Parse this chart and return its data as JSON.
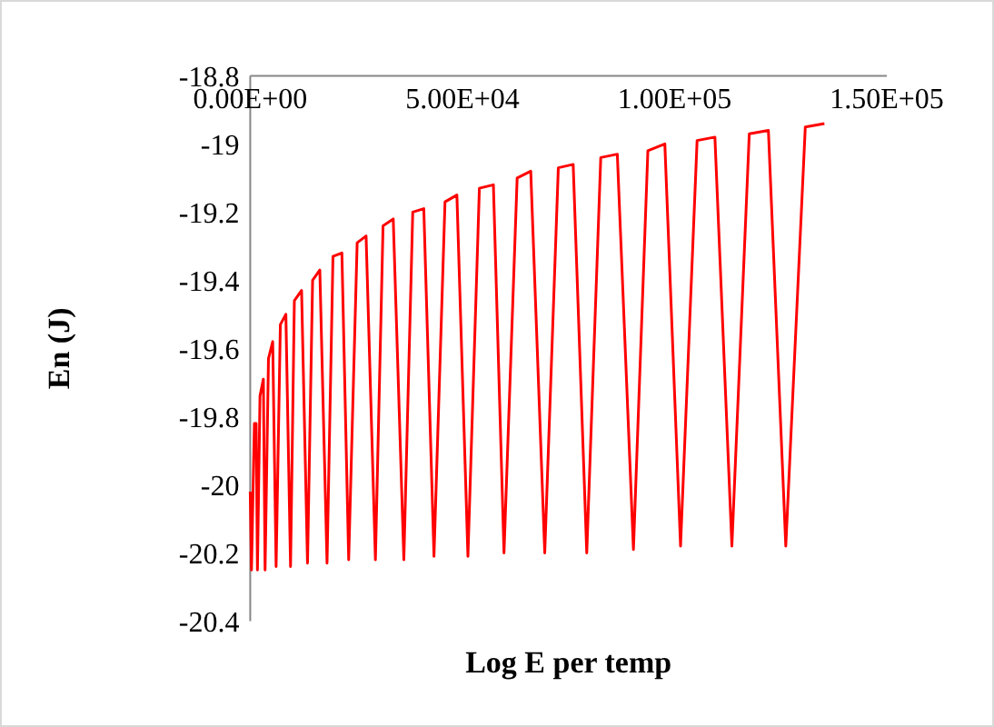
{
  "chart_data": {
    "type": "line",
    "xlabel": "Log E per temp",
    "ylabel": "En (J)",
    "xlim": [
      0,
      150000
    ],
    "xticks": [
      {
        "value": 0,
        "label": "0.00E+00"
      },
      {
        "value": 50000,
        "label": "5.00E+04"
      },
      {
        "value": 100000,
        "label": "1.00E+05"
      },
      {
        "value": 150000,
        "label": "1.50E+05"
      }
    ],
    "ylim": [
      -20.4,
      -18.8
    ],
    "yticks": [
      -20.4,
      -20.2,
      -20,
      -19.8,
      -19.6,
      -19.4,
      -19.2,
      -19,
      -18.8
    ],
    "grid": false,
    "marker": "none",
    "line_style": "solid",
    "series": [
      {
        "color": "#ff0000",
        "x": [
          0,
          300,
          980,
          1400,
          1700,
          2300,
          3100,
          3500,
          4300,
          5300,
          6100,
          7100,
          8400,
          9500,
          10400,
          12100,
          13500,
          14700,
          16400,
          18100,
          19500,
          21600,
          23200,
          25200,
          27300,
          29500,
          31300,
          33700,
          36200,
          38300,
          40900,
          43300,
          45900,
          48700,
          51300,
          54000,
          57300,
          59800,
          62900,
          66100,
          69400,
          72600,
          76100,
          79300,
          82600,
          86500,
          90300,
          93700,
          97700,
          101400,
          105300,
          109500,
          113500,
          117600,
          122100,
          126200,
          130800,
          135300
        ],
        "values": [
          -20.02,
          -20.25,
          -19.82,
          -19.82,
          -20.25,
          -19.74,
          -19.69,
          -20.25,
          -19.63,
          -19.58,
          -20.24,
          -19.53,
          -19.5,
          -20.24,
          -19.46,
          -19.43,
          -20.23,
          -19.4,
          -19.37,
          -20.23,
          -19.33,
          -19.32,
          -20.22,
          -19.29,
          -19.27,
          -20.22,
          -19.24,
          -19.22,
          -20.22,
          -19.2,
          -19.19,
          -20.21,
          -19.17,
          -19.15,
          -20.21,
          -19.13,
          -19.12,
          -20.2,
          -19.1,
          -19.08,
          -20.2,
          -19.07,
          -19.06,
          -20.2,
          -19.04,
          -19.03,
          -20.19,
          -19.02,
          -19,
          -20.18,
          -18.99,
          -18.98,
          -20.18,
          -18.97,
          -18.96,
          -20.18,
          -18.95,
          -18.94
        ]
      }
    ]
  }
}
